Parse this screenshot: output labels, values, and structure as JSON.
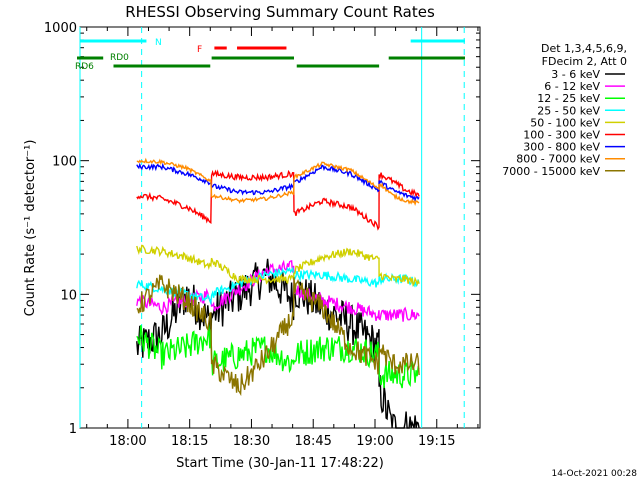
{
  "chart_data": {
    "type": "line",
    "title": "RHESSI Observing Summary Count Rates",
    "ylabel": "Count Rate (s⁻¹ detector⁻¹)",
    "xlabel": "Start Time (30-Jan-11 17:48:22)",
    "yscale": "log",
    "ylim": [
      1,
      1000
    ],
    "xlim": [
      "17:48:22",
      "19:25:30"
    ],
    "x_ticks": [
      "18:00",
      "18:15",
      "18:30",
      "18:45",
      "19:00",
      "19:15"
    ],
    "y_ticks": [
      "1",
      "10",
      "100",
      "1000"
    ],
    "legend_header": [
      "Det 1,3,4,5,6,9,",
      "FDecim 2, Att 0"
    ],
    "legend_position": "right",
    "timestamp": "14-Oct-2021 00:28",
    "series": [
      {
        "name": "3 - 6 keV",
        "color": "#000000"
      },
      {
        "name": "6 - 12 keV",
        "color": "#ff00ff"
      },
      {
        "name": "12 - 25 keV",
        "color": "#00ff00"
      },
      {
        "name": "25 - 50 keV",
        "color": "#00ffff"
      },
      {
        "name": "50 - 100 keV",
        "color": "#d0d000"
      },
      {
        "name": "100 - 300 keV",
        "color": "#ff0000"
      },
      {
        "name": "300 - 800 keV",
        "color": "#0000ff"
      },
      {
        "name": "800 - 7000 keV",
        "color": "#ff8c00"
      },
      {
        "name": "7000 - 15000 keV",
        "color": "#8b7500"
      }
    ],
    "segments": [
      {
        "start": "18:02:10",
        "end": "18:20:20"
      },
      {
        "start": "18:20:20",
        "end": "18:40:20"
      },
      {
        "start": "18:40:20",
        "end": "19:01:00"
      },
      {
        "start": "19:01:00",
        "end": "19:10:50"
      }
    ],
    "levels": {
      "3 - 6 keV": [
        [
          4,
          5,
          10,
          6
        ],
        [
          7,
          10,
          14,
          9
        ],
        [
          11,
          8,
          6,
          4
        ],
        [
          2,
          1,
          1,
          1
        ]
      ],
      "6 - 12 keV": [
        [
          9,
          8,
          9,
          10
        ],
        [
          8,
          11,
          15,
          16
        ],
        [
          11,
          9,
          8,
          7
        ],
        [
          7,
          7,
          7,
          7
        ]
      ],
      "12 - 25 keV": [
        [
          5,
          3.5,
          4,
          5
        ],
        [
          3,
          3.5,
          4,
          3
        ],
        [
          3.5,
          4,
          4,
          3.5
        ],
        [
          2.5,
          2.5,
          2.5,
          2.5
        ]
      ],
      "25 - 50 keV": [
        [
          12,
          11,
          10,
          9
        ],
        [
          10,
          12,
          14,
          15
        ],
        [
          14,
          14,
          13,
          12
        ],
        [
          13,
          13,
          13,
          12
        ]
      ],
      "50 - 100 keV": [
        [
          22,
          21,
          19,
          16
        ],
        [
          18,
          13,
          13,
          13
        ],
        [
          15,
          19,
          21,
          18
        ],
        [
          14,
          13,
          13,
          12
        ]
      ],
      "100 - 300 keV": [
        [
          55,
          52,
          45,
          35
        ],
        [
          80,
          75,
          75,
          80
        ],
        [
          40,
          50,
          45,
          32
        ],
        [
          80,
          70,
          60,
          55
        ]
      ],
      "300 - 800 keV": [
        [
          90,
          90,
          80,
          68
        ],
        [
          65,
          58,
          58,
          65
        ],
        [
          68,
          90,
          80,
          60
        ],
        [
          70,
          60,
          55,
          52
        ]
      ],
      "800 - 7000 keV": [
        [
          100,
          98,
          88,
          70
        ],
        [
          55,
          50,
          52,
          58
        ],
        [
          75,
          95,
          85,
          62
        ],
        [
          68,
          55,
          50,
          48
        ]
      ],
      "7000 - 15000 keV": [
        [
          8,
          12,
          9,
          6
        ],
        [
          3,
          2,
          3.5,
          7
        ],
        [
          11,
          8,
          4,
          3
        ],
        [
          4,
          3,
          3,
          3
        ]
      ]
    },
    "flags": [
      {
        "label": "",
        "color": "#00ffff",
        "segments": [
          [
            "17:48:22",
            "18:04:30"
          ],
          [
            "19:08:40",
            "19:23:00"
          ]
        ]
      },
      {
        "label": "N",
        "color": "#00ffff",
        "segments": []
      },
      {
        "label": "F",
        "color": "#ff0000",
        "segments": [
          [
            "18:21:00",
            "18:24:00"
          ],
          [
            "18:26:30",
            "18:38:30"
          ]
        ]
      },
      {
        "label": "RD0",
        "color": "#008000",
        "segments": [
          [
            "17:46:00",
            "17:54:00"
          ],
          [
            "18:20:20",
            "18:40:20"
          ],
          [
            "19:03:20",
            "19:25:30"
          ]
        ]
      },
      {
        "label": "RD6",
        "color": "#008000",
        "segments": [
          [
            "17:56:30",
            "18:20:00"
          ],
          [
            "18:41:00",
            "19:01:00"
          ]
        ]
      }
    ],
    "vlines": [
      {
        "time": "17:48:22",
        "color": "#00ffff",
        "style": "solid"
      },
      {
        "time": "18:03:20",
        "color": "#00ffff",
        "style": "dashed"
      },
      {
        "time": "19:11:20",
        "color": "#00ffff",
        "style": "solid"
      },
      {
        "time": "19:21:40",
        "color": "#00ffff",
        "style": "dashed"
      }
    ]
  }
}
